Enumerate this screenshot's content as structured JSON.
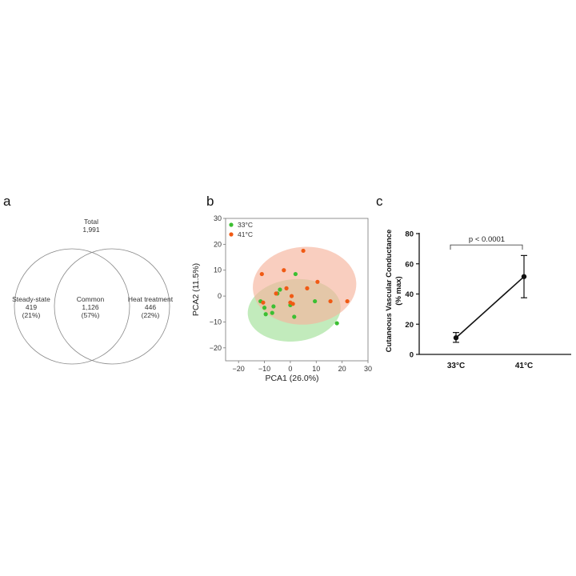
{
  "panels": {
    "a": {
      "letter": "a",
      "total_label": "Total",
      "total_value": "1,991",
      "regions": [
        {
          "name": "Steady-state",
          "count": "419",
          "pct": "(21%)"
        },
        {
          "name": "Common",
          "count": "1,126",
          "pct": "(57%)"
        },
        {
          "name": "Heat treatment",
          "count": "446",
          "pct": "(22%)"
        }
      ]
    },
    "b": {
      "letter": "b"
    },
    "c": {
      "letter": "c"
    }
  },
  "chart_data": [
    {
      "type": "venn",
      "panel": "a",
      "title": "Total 1,991",
      "sets": [
        {
          "name": "Steady-state",
          "only": 419,
          "percent": 21
        },
        {
          "name": "Heat treatment",
          "only": 446,
          "percent": 22
        }
      ],
      "intersection": {
        "name": "Common",
        "value": 1126,
        "percent": 57
      },
      "total": 1991
    },
    {
      "type": "scatter",
      "panel": "b",
      "xlabel": "PCA1 (26.0%)",
      "ylabel": "PCA2 (11.5%)",
      "xlim": [
        -25,
        30
      ],
      "ylim": [
        -25,
        30
      ],
      "xticks": [
        -20,
        -10,
        0,
        10,
        20,
        30
      ],
      "yticks": [
        -20,
        -10,
        0,
        10,
        20,
        30
      ],
      "legend_position": "top-left",
      "grid": false,
      "series": [
        {
          "name": "33°C",
          "color": "#3cbf32",
          "ellipse_color": "#a8e3a0",
          "points": [
            [
              -11.5,
              -2
            ],
            [
              -10,
              -4.5
            ],
            [
              -9.5,
              -7
            ],
            [
              -7,
              -6.5
            ],
            [
              -6.5,
              -4
            ],
            [
              -5,
              1
            ],
            [
              -4,
              2.5
            ],
            [
              0,
              -3.5
            ],
            [
              1.5,
              -8
            ],
            [
              2,
              8.5
            ],
            [
              9.5,
              -2
            ],
            [
              18,
              -10.5
            ]
          ]
        },
        {
          "name": "41°C",
          "color": "#f05a14",
          "ellipse_color": "#f6b49c",
          "points": [
            [
              -11,
              8.5
            ],
            [
              -10.5,
              -2.5
            ],
            [
              -5.5,
              1
            ],
            [
              -2.5,
              10
            ],
            [
              -1.5,
              3
            ],
            [
              0,
              -2.5
            ],
            [
              0.5,
              0
            ],
            [
              1,
              -3
            ],
            [
              5,
              17.5
            ],
            [
              6.5,
              3
            ],
            [
              10.5,
              5.5
            ],
            [
              15.5,
              -2
            ],
            [
              22,
              -2
            ]
          ]
        }
      ]
    },
    {
      "type": "line",
      "panel": "c",
      "categories": [
        "33°C",
        "41°C"
      ],
      "values": [
        11,
        51.5
      ],
      "error": [
        [
          8,
          14.5
        ],
        [
          37.5,
          65.5
        ]
      ],
      "ylabel": "Cutaneous Vascular Conductance (% max)",
      "ylim": [
        0,
        80
      ],
      "yticks": [
        0,
        20,
        40,
        60,
        80
      ],
      "annotation": "p < 0.0001"
    }
  ]
}
